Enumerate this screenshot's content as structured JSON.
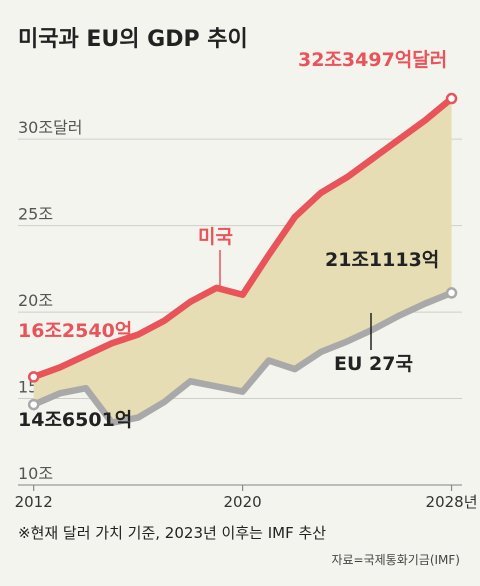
{
  "chart_data": {
    "type": "line",
    "title": "미국과 EU의 GDP 추이",
    "x": [
      2012,
      2013,
      2014,
      2015,
      2016,
      2017,
      2018,
      2019,
      2020,
      2021,
      2022,
      2023,
      2024,
      2025,
      2026,
      2027,
      2028
    ],
    "x_tick_labels": [
      "2012",
      "2020",
      "2028년"
    ],
    "x_tick_values": [
      2012,
      2020,
      2028
    ],
    "y_tick_labels": [
      "10조",
      "15조",
      "20조",
      "25조",
      "30조달러"
    ],
    "y_tick_values": [
      10,
      15,
      20,
      25,
      30
    ],
    "ylim": [
      10,
      34
    ],
    "xlim": [
      2011.4,
      2028.4
    ],
    "grid": "horizontal",
    "series": [
      {
        "name": "미국",
        "color": "#e8545a",
        "values": [
          16.25,
          16.8,
          17.5,
          18.2,
          18.7,
          19.5,
          20.6,
          21.4,
          21.0,
          23.3,
          25.5,
          26.9,
          27.8,
          28.9,
          30.0,
          31.1,
          32.35
        ]
      },
      {
        "name": "EU 27국",
        "color": "#a9a9a9",
        "values": [
          14.65,
          15.3,
          15.6,
          13.6,
          13.9,
          14.8,
          16.0,
          15.7,
          15.4,
          17.2,
          16.7,
          17.7,
          18.3,
          19.0,
          19.8,
          20.5,
          21.11
        ]
      }
    ],
    "annotations": {
      "us_end": "32조3497억달러",
      "us_start": "16조2540억",
      "eu_end": "21조1113억",
      "eu_start": "14조6501억"
    },
    "fill_between_color": "#e6ddb4"
  },
  "footnote": "※현재 달러 가치 기준, 2023년 이후는 IMF 추산",
  "source": "자료=국제통화기금(IMF)"
}
